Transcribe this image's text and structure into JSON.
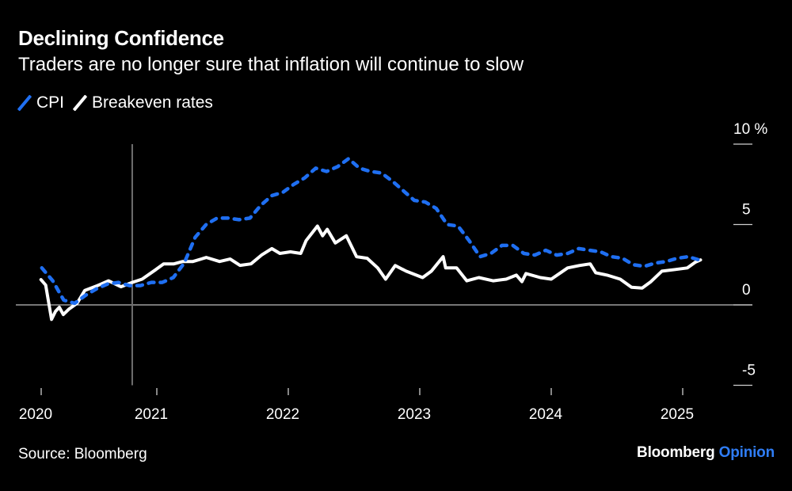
{
  "title": "Declining Confidence",
  "subtitle": "Traders are no longer sure that inflation will continue to slow",
  "source": "Source: Bloomberg",
  "logo": {
    "brand": "Bloomberg",
    "section": "Opinion"
  },
  "colors": {
    "background": "#000000",
    "cpi": "#1f6ff2",
    "breakeven": "#ffffff",
    "zero_line": "#bdbdbd",
    "marker_line": "#6e6e6e"
  },
  "chart_data": {
    "type": "line",
    "title": "Declining Confidence",
    "subtitle": "Traders are no longer sure that inflation will continue to slow",
    "ylabel": "",
    "xlabel": "",
    "y_unit": "%",
    "ylim": [
      -5,
      10
    ],
    "y_ticks": [
      {
        "value": 10,
        "label": "10 %"
      },
      {
        "value": 5,
        "label": "5"
      },
      {
        "value": 0,
        "label": "0"
      },
      {
        "value": -5,
        "label": "-5"
      }
    ],
    "x_ticks": [
      {
        "value": 2020,
        "label": "2020"
      },
      {
        "value": 2021,
        "label": "2021"
      },
      {
        "value": 2022,
        "label": "2022"
      },
      {
        "value": 2023,
        "label": "2023"
      },
      {
        "value": 2024,
        "label": "2024"
      },
      {
        "value": 2025,
        "label": "2025"
      }
    ],
    "grid": false,
    "legend_position": "top-left",
    "vertical_marker": "2020-10-24",
    "series": [
      {
        "name": "CPI",
        "style": "dashed",
        "x": [
          "2020-02",
          "2020-03",
          "2020-04",
          "2020-05",
          "2020-06",
          "2020-07",
          "2020-08",
          "2020-09",
          "2020-10",
          "2020-11",
          "2020-12",
          "2021-01",
          "2021-02",
          "2021-03",
          "2021-04",
          "2021-05",
          "2021-06",
          "2021-07",
          "2021-08",
          "2021-09",
          "2021-10",
          "2021-11",
          "2021-12",
          "2022-01",
          "2022-02",
          "2022-03",
          "2022-04",
          "2022-05",
          "2022-06",
          "2022-07",
          "2022-08",
          "2022-09",
          "2022-10",
          "2022-11",
          "2022-12",
          "2023-01",
          "2023-02",
          "2023-03",
          "2023-04",
          "2023-05",
          "2023-06",
          "2023-07",
          "2023-08",
          "2023-09",
          "2023-10",
          "2023-11",
          "2023-12",
          "2024-01",
          "2024-02",
          "2024-03",
          "2024-04",
          "2024-05",
          "2024-06",
          "2024-07",
          "2024-08",
          "2024-09",
          "2024-10",
          "2024-11",
          "2024-12",
          "2025-01",
          "2025-02"
        ],
        "values": [
          2.3,
          1.5,
          0.3,
          0.1,
          0.6,
          1.0,
          1.3,
          1.4,
          1.2,
          1.2,
          1.4,
          1.4,
          1.7,
          2.6,
          4.2,
          5.0,
          5.4,
          5.4,
          5.3,
          5.4,
          6.2,
          6.8,
          7.0,
          7.5,
          7.9,
          8.5,
          8.3,
          8.6,
          9.1,
          8.5,
          8.3,
          8.2,
          7.7,
          7.1,
          6.5,
          6.4,
          6.0,
          5.0,
          4.9,
          4.0,
          3.0,
          3.2,
          3.7,
          3.7,
          3.2,
          3.1,
          3.4,
          3.1,
          3.2,
          3.5,
          3.4,
          3.3,
          3.0,
          2.9,
          2.5,
          2.4,
          2.6,
          2.7,
          2.9,
          3.0,
          2.8
        ]
      },
      {
        "name": "Breakeven rates",
        "style": "solid",
        "x": [
          "2020-02-14",
          "2020-02-27",
          "2020-03-13",
          "2020-03-24",
          "2020-04-04",
          "2020-04-15",
          "2020-05-01",
          "2020-05-23",
          "2020-06-14",
          "2020-07-19",
          "2020-08-19",
          "2020-09-23",
          "2020-10-24",
          "2020-11-21",
          "2020-12-29",
          "2021-01-20",
          "2021-02-18",
          "2021-03-12",
          "2021-04-10",
          "2021-05-17",
          "2021-06-23",
          "2021-07-22",
          "2021-08-19",
          "2021-09-19",
          "2021-10-18",
          "2021-11-16",
          "2021-12-08",
          "2022-01-07",
          "2022-02-05",
          "2022-02-20",
          "2022-03-21",
          "2022-04-05",
          "2022-04-18",
          "2022-05-10",
          "2022-06-10",
          "2022-07-08",
          "2022-08-07",
          "2022-09-06",
          "2022-09-28",
          "2022-10-24",
          "2022-11-24",
          "2023-01-09",
          "2023-02-03",
          "2023-03-05",
          "2023-03-12",
          "2023-04-12",
          "2023-05-10",
          "2023-06-13",
          "2023-07-22",
          "2023-08-28",
          "2023-09-26",
          "2023-10-11",
          "2023-10-22",
          "2023-12-01",
          "2024-01-01",
          "2024-02-16",
          "2024-03-18",
          "2024-04-18",
          "2024-05-03",
          "2024-06-04",
          "2024-07-10",
          "2024-08-11",
          "2024-09-10",
          "2024-10-04",
          "2024-11-04",
          "2024-12-11",
          "2025-01-14",
          "2025-02-05",
          "2025-02-20"
        ],
        "values": [
          1.57,
          1.23,
          -0.9,
          -0.4,
          -0.15,
          -0.6,
          -0.25,
          0.1,
          0.9,
          1.2,
          1.5,
          1.13,
          1.4,
          1.6,
          2.2,
          2.55,
          2.55,
          2.7,
          2.7,
          2.95,
          2.7,
          2.85,
          2.46,
          2.55,
          3.1,
          3.5,
          3.2,
          3.3,
          3.2,
          4.0,
          4.9,
          4.3,
          4.7,
          3.85,
          4.3,
          3.0,
          2.9,
          2.3,
          1.6,
          2.45,
          2.1,
          1.7,
          2.1,
          3.0,
          2.3,
          2.3,
          1.5,
          1.7,
          1.5,
          1.6,
          1.85,
          1.45,
          1.95,
          1.7,
          1.6,
          2.3,
          2.45,
          2.55,
          2.0,
          1.85,
          1.6,
          1.1,
          1.05,
          1.45,
          2.1,
          2.2,
          2.3,
          2.65,
          2.8
        ]
      }
    ]
  }
}
